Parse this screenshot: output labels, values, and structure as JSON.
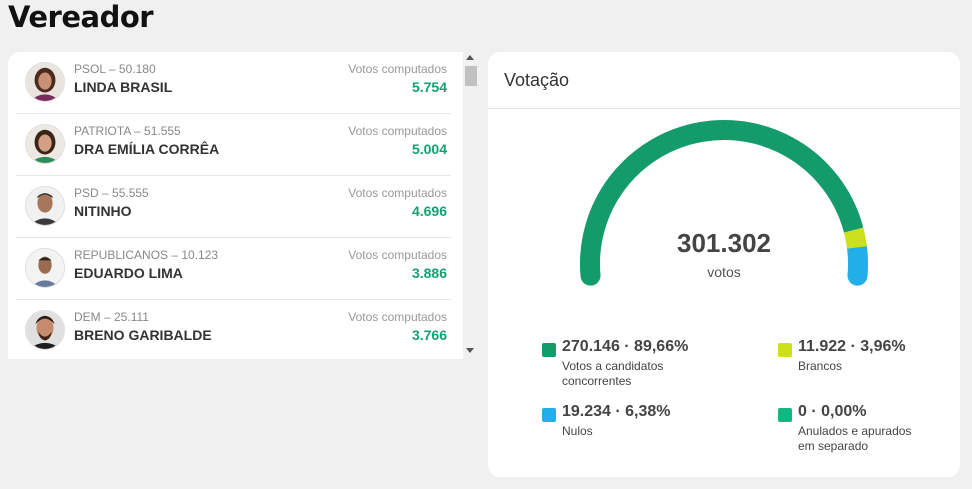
{
  "page": {
    "title": "Vereador"
  },
  "candidates": [
    {
      "party": "PSOL – 50.180",
      "name": "LINDA BRASIL",
      "votes_label": "Votos computados",
      "votes": "5.754"
    },
    {
      "party": "PATRIOTA – 51.555",
      "name": "DRA EMÍLIA CORRÊA",
      "votes_label": "Votos computados",
      "votes": "5.004"
    },
    {
      "party": "PSD – 55.555",
      "name": "NITINHO",
      "votes_label": "Votos computados",
      "votes": "4.696"
    },
    {
      "party": "REPUBLICANOS – 10.123",
      "name": "EDUARDO LIMA",
      "votes_label": "Votos computados",
      "votes": "3.886"
    },
    {
      "party": "DEM – 25.111",
      "name": "BRENO GARIBALDE",
      "votes_label": "Votos computados",
      "votes": "3.766"
    }
  ],
  "votacao": {
    "title": "Votação",
    "total": "301.302",
    "total_unit": "votos",
    "legend": [
      {
        "value": "270.146 · 89,66%",
        "label": "Votos a candidatos concorrentes",
        "color": "#149b6a",
        "fraction": 0.8966
      },
      {
        "value": "11.922 · 3,96%",
        "label": "Brancos",
        "color": "#cde01e",
        "fraction": 0.0396
      },
      {
        "value": "19.234 · 6,38%",
        "label": "Nulos",
        "color": "#22aee8",
        "fraction": 0.0638
      },
      {
        "value": "0 · 0,00%",
        "label": "Anulados e apurados em separado",
        "color": "#10b981",
        "fraction": 0.0
      }
    ]
  }
}
